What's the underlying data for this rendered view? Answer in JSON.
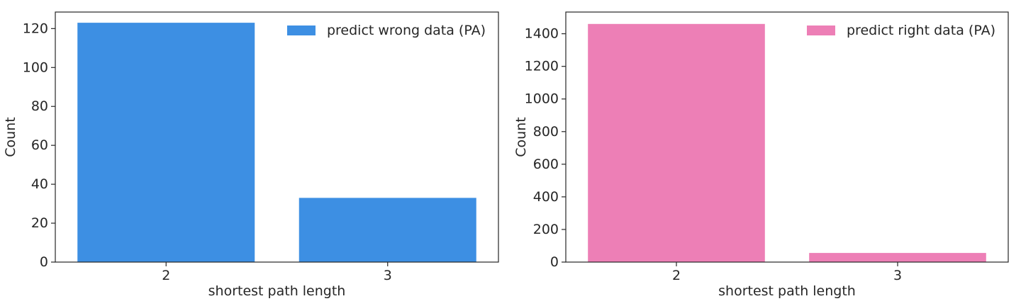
{
  "chart_data": [
    {
      "type": "bar",
      "categories": [
        "2",
        "3"
      ],
      "series": [
        {
          "name": "predict wrong data (PA)",
          "values": [
            123,
            33
          ],
          "color": "#3d8fe3"
        }
      ],
      "xlabel": "shortest path length",
      "ylabel": "Count",
      "ylim": [
        0,
        128.5
      ],
      "yticks": [
        0,
        20,
        40,
        60,
        80,
        100,
        120
      ],
      "grid": false,
      "legend": "top-right"
    },
    {
      "type": "bar",
      "categories": [
        "2",
        "3"
      ],
      "series": [
        {
          "name": "predict right data (PA)",
          "values": [
            1460,
            56
          ],
          "color": "#ed7fb6"
        }
      ],
      "xlabel": "shortest path length",
      "ylabel": "Count",
      "ylim": [
        0,
        1533
      ],
      "yticks": [
        0,
        200,
        400,
        600,
        800,
        1000,
        1200,
        1400
      ],
      "grid": false,
      "legend": "top-right"
    }
  ]
}
